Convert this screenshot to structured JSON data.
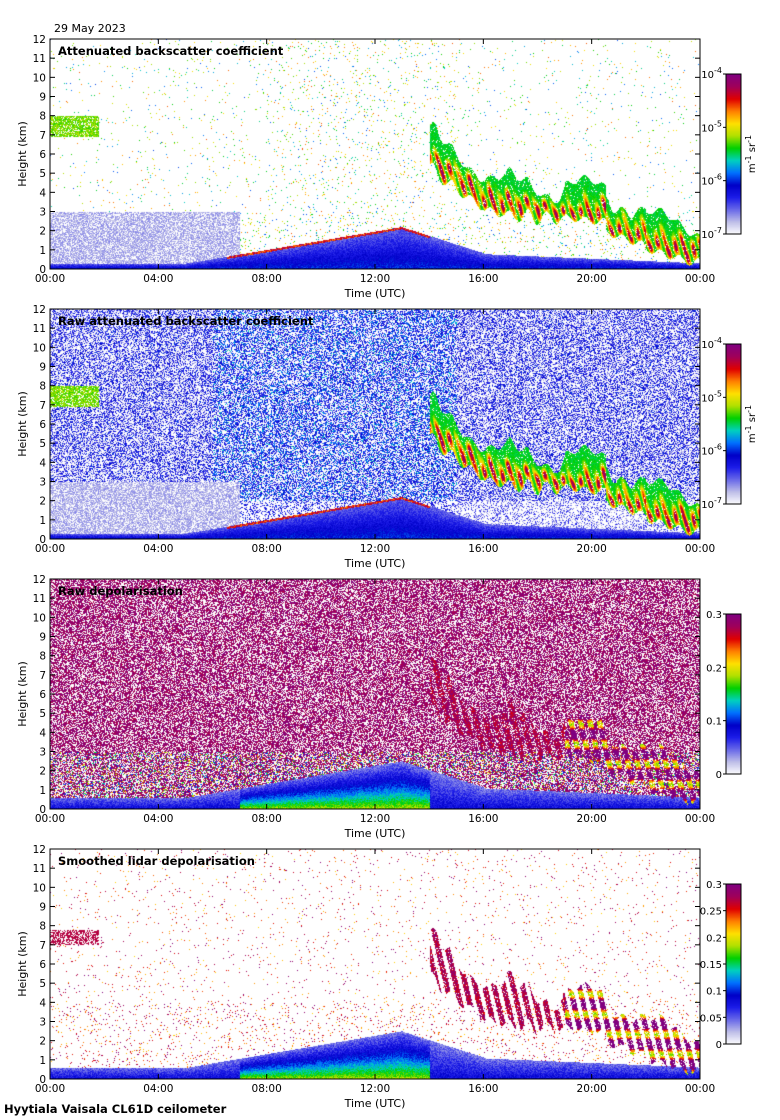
{
  "date": "29 May 2023",
  "footer": "Hyytiala Vaisala CL61D ceilometer",
  "colormap": [
    "#ffffff",
    "#bfbfe8",
    "#6a6ae8",
    "#1c1ce8",
    "#0000c8",
    "#0070ff",
    "#00d0c0",
    "#00d000",
    "#b0e000",
    "#ffe000",
    "#ff8000",
    "#e00000",
    "#a0005a",
    "#800080"
  ],
  "chart_data": [
    {
      "type": "heatmap",
      "title": "Attenuated backscatter coefficient",
      "xlabel": "Time (UTC)",
      "ylabel": "Height (km)",
      "x_ticks": [
        "00:00",
        "04:00",
        "08:00",
        "12:00",
        "16:00",
        "20:00",
        "00:00"
      ],
      "y_ticks": [
        "0",
        "1",
        "2",
        "3",
        "4",
        "5",
        "6",
        "7",
        "8",
        "9",
        "10",
        "11",
        "12"
      ],
      "ylim": [
        0,
        12
      ],
      "colorbar": {
        "scale": "log",
        "min_exp": -7,
        "max_exp": -4,
        "tick_base": "10",
        "tick_exps": [
          "-7",
          "-6",
          "-5",
          "-4"
        ],
        "unit_parts": [
          "m",
          "-1",
          " sr",
          "-1"
        ]
      }
    },
    {
      "type": "heatmap",
      "title": "Raw attenuated backscatter coefficient",
      "xlabel": "Time (UTC)",
      "ylabel": "Height (km)",
      "x_ticks": [
        "00:00",
        "04:00",
        "08:00",
        "12:00",
        "16:00",
        "20:00",
        "00:00"
      ],
      "y_ticks": [
        "0",
        "1",
        "2",
        "3",
        "4",
        "5",
        "6",
        "7",
        "8",
        "9",
        "10",
        "11",
        "12"
      ],
      "ylim": [
        0,
        12
      ],
      "colorbar": {
        "scale": "log",
        "min_exp": -7,
        "max_exp": -4,
        "tick_base": "10",
        "tick_exps": [
          "-7",
          "-6",
          "-5",
          "-4"
        ],
        "unit_parts": [
          "m",
          "-1",
          " sr",
          "-1"
        ]
      }
    },
    {
      "type": "heatmap",
      "title": "Raw depolarisation",
      "xlabel": "Time (UTC)",
      "ylabel": "Height (km)",
      "x_ticks": [
        "00:00",
        "04:00",
        "08:00",
        "12:00",
        "16:00",
        "20:00",
        "00:00"
      ],
      "y_ticks": [
        "0",
        "1",
        "2",
        "3",
        "4",
        "5",
        "6",
        "7",
        "8",
        "9",
        "10",
        "11",
        "12"
      ],
      "ylim": [
        0,
        12
      ],
      "colorbar": {
        "scale": "linear",
        "min": 0,
        "max": 0.3,
        "ticks": [
          "0",
          "0.1",
          "0.2",
          "0.3"
        ],
        "tick_values": [
          0,
          0.1,
          0.2,
          0.3
        ]
      }
    },
    {
      "type": "heatmap",
      "title": "Smoothed lidar depolarisation",
      "xlabel": "Time (UTC)",
      "ylabel": "Height (km)",
      "x_ticks": [
        "00:00",
        "04:00",
        "08:00",
        "12:00",
        "16:00",
        "20:00",
        "00:00"
      ],
      "y_ticks": [
        "0",
        "1",
        "2",
        "3",
        "4",
        "5",
        "6",
        "7",
        "8",
        "9",
        "10",
        "11",
        "12"
      ],
      "ylim": [
        0,
        12
      ],
      "colorbar": {
        "scale": "linear",
        "min": 0,
        "max": 0.3,
        "ticks": [
          "0",
          "0.05",
          "0.1",
          "0.15",
          "0.2",
          "0.25",
          "0.3"
        ],
        "tick_values": [
          0,
          0.05,
          0.1,
          0.15,
          0.2,
          0.25,
          0.3
        ]
      }
    }
  ]
}
